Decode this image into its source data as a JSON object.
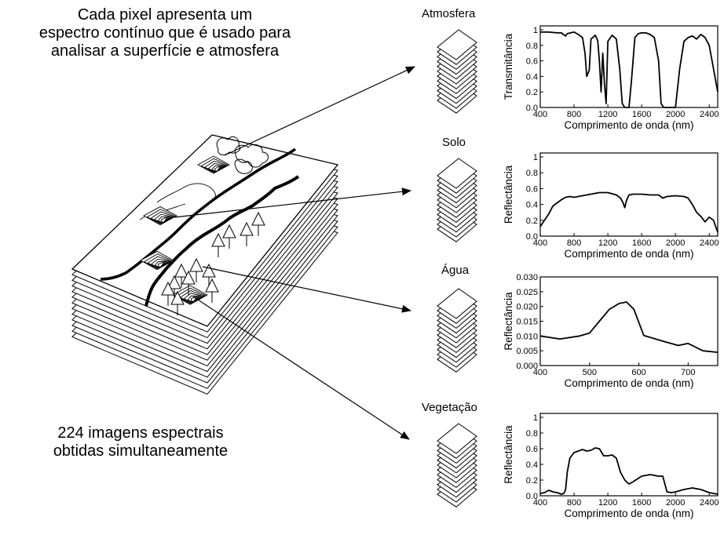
{
  "captions": {
    "top": "Cada pixel apresenta um\nespectro contínuo que é usado para\nanalisar a superfície e atmosfera",
    "bottom": "224 imagens espectrais\nobtidas simultaneamente"
  },
  "chart_data": [
    {
      "type": "line",
      "title": "Atmosfera",
      "xlabel": "Comprimento de onda (nm)",
      "ylabel": "Transmitância",
      "xlim": [
        400,
        2500
      ],
      "ylim": [
        0,
        1.05
      ],
      "xticks": [
        400,
        800,
        1200,
        1600,
        2000,
        2400
      ],
      "yticks": [
        {
          "v": 0,
          "l": "0.0"
        },
        {
          "v": 0.2,
          "l": "0.2"
        },
        {
          "v": 0.4,
          "l": "0.4"
        },
        {
          "v": 0.6,
          "l": "0.6"
        },
        {
          "v": 0.8,
          "l": "0.8"
        },
        {
          "v": 1,
          "l": "1"
        }
      ],
      "x": [
        400,
        500,
        600,
        650,
        700,
        720,
        760,
        800,
        850,
        900,
        930,
        950,
        980,
        1000,
        1050,
        1080,
        1100,
        1120,
        1140,
        1160,
        1180,
        1200,
        1250,
        1300,
        1340,
        1370,
        1400,
        1420,
        1450,
        1480,
        1520,
        1560,
        1600,
        1650,
        1700,
        1750,
        1800,
        1830,
        1860,
        1900,
        1950,
        2000,
        2050,
        2100,
        2150,
        2200,
        2250,
        2300,
        2350,
        2400,
        2450,
        2500
      ],
      "y": [
        0.97,
        0.97,
        0.96,
        0.96,
        0.92,
        0.95,
        0.96,
        0.97,
        0.94,
        0.9,
        0.7,
        0.4,
        0.48,
        0.88,
        0.93,
        0.86,
        0.6,
        0.2,
        0.7,
        0.3,
        0.05,
        0.85,
        0.93,
        0.88,
        0.5,
        0.05,
        0.0,
        0.0,
        0.0,
        0.35,
        0.9,
        0.95,
        0.96,
        0.96,
        0.94,
        0.9,
        0.6,
        0.05,
        0.0,
        0.0,
        0.0,
        0.0,
        0.5,
        0.85,
        0.9,
        0.92,
        0.88,
        0.94,
        0.9,
        0.8,
        0.5,
        0.2
      ]
    },
    {
      "type": "line",
      "title": "Solo",
      "xlabel": "Comprimento de onda (nm)",
      "ylabel": "Reflectância",
      "xlim": [
        400,
        2500
      ],
      "ylim": [
        0,
        1.05
      ],
      "xticks": [
        400,
        800,
        1200,
        1600,
        2000,
        2400
      ],
      "yticks": [
        {
          "v": 0,
          "l": "0.0"
        },
        {
          "v": 0.2,
          "l": "0.2"
        },
        {
          "v": 0.4,
          "l": "0.4"
        },
        {
          "v": 0.6,
          "l": "0.6"
        },
        {
          "v": 0.8,
          "l": "0.8"
        },
        {
          "v": 1,
          "l": "1"
        }
      ],
      "x": [
        400,
        450,
        500,
        550,
        600,
        650,
        700,
        750,
        800,
        900,
        1000,
        1100,
        1200,
        1300,
        1350,
        1380,
        1400,
        1420,
        1450,
        1500,
        1600,
        1700,
        1800,
        1850,
        1900,
        2000,
        2100,
        2150,
        2200,
        2250,
        2300,
        2350,
        2400,
        2450,
        2500
      ],
      "y": [
        0.12,
        0.2,
        0.28,
        0.38,
        0.42,
        0.46,
        0.49,
        0.5,
        0.49,
        0.51,
        0.53,
        0.55,
        0.55,
        0.52,
        0.48,
        0.42,
        0.36,
        0.45,
        0.52,
        0.53,
        0.53,
        0.52,
        0.52,
        0.48,
        0.5,
        0.51,
        0.5,
        0.48,
        0.4,
        0.3,
        0.25,
        0.18,
        0.24,
        0.2,
        0.05
      ]
    },
    {
      "type": "line",
      "title": "Água",
      "xlabel": "Comprimento de onda (nm)",
      "ylabel": "Reflectância",
      "xlim": [
        400,
        760
      ],
      "ylim": [
        0,
        0.03
      ],
      "xticks": [
        400,
        500,
        600,
        700
      ],
      "yticks": [
        {
          "v": 0,
          "l": "0.000"
        },
        {
          "v": 0.005,
          "l": "0.005"
        },
        {
          "v": 0.01,
          "l": "0.010"
        },
        {
          "v": 0.015,
          "l": "0.015"
        },
        {
          "v": 0.02,
          "l": "0.020"
        },
        {
          "v": 0.025,
          "l": "0.025"
        },
        {
          "v": 0.03,
          "l": "0.030"
        }
      ],
      "x": [
        400,
        440,
        480,
        500,
        520,
        540,
        560,
        575,
        590,
        610,
        650,
        680,
        700,
        730,
        760
      ],
      "y": [
        0.01,
        0.009,
        0.01,
        0.011,
        0.015,
        0.019,
        0.021,
        0.0215,
        0.019,
        0.0102,
        0.0082,
        0.0068,
        0.0075,
        0.005,
        0.0045
      ]
    },
    {
      "type": "line",
      "title": "Vegetação",
      "xlabel": "Comprimento de onda (nm)",
      "ylabel": "Reflectância",
      "xlim": [
        400,
        2500
      ],
      "ylim": [
        0,
        1.05
      ],
      "xticks": [
        400,
        800,
        1200,
        1600,
        2000,
        2400
      ],
      "yticks": [
        {
          "v": 0,
          "l": "0.0"
        },
        {
          "v": 0.2,
          "l": "0.2"
        },
        {
          "v": 0.4,
          "l": "0.4"
        },
        {
          "v": 0.6,
          "l": "0.6"
        },
        {
          "v": 0.8,
          "l": "0.8"
        },
        {
          "v": 1,
          "l": "1"
        }
      ],
      "x": [
        400,
        450,
        500,
        550,
        600,
        650,
        680,
        700,
        720,
        750,
        800,
        900,
        950,
        1000,
        1050,
        1100,
        1150,
        1200,
        1250,
        1300,
        1350,
        1400,
        1450,
        1500,
        1600,
        1700,
        1800,
        1850,
        1900,
        1950,
        2000,
        2100,
        2200,
        2300,
        2400,
        2500
      ],
      "y": [
        0.03,
        0.04,
        0.07,
        0.05,
        0.04,
        0.02,
        0.03,
        0.08,
        0.3,
        0.48,
        0.55,
        0.59,
        0.57,
        0.58,
        0.61,
        0.6,
        0.51,
        0.51,
        0.52,
        0.48,
        0.3,
        0.2,
        0.15,
        0.18,
        0.25,
        0.27,
        0.25,
        0.25,
        0.05,
        0.04,
        0.05,
        0.08,
        0.1,
        0.08,
        0.04,
        0.02
      ]
    }
  ]
}
